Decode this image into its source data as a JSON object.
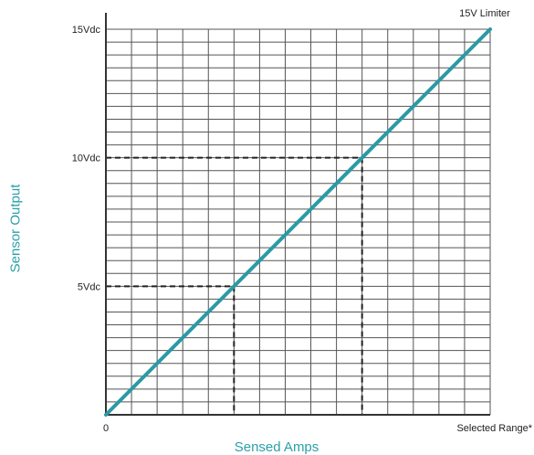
{
  "chart_data": {
    "type": "line",
    "xlabel": "Sensed Amps",
    "ylabel": "Sensor Output",
    "x_tick_labels": {
      "start": "0",
      "end": "Selected Range*"
    },
    "y_ticks": [
      {
        "value": 5,
        "label": "5Vdc"
      },
      {
        "value": 10,
        "label": "10Vdc"
      },
      {
        "value": 15,
        "label": "15Vdc"
      }
    ],
    "xlim": [
      0,
      15
    ],
    "ylim": [
      0,
      15
    ],
    "grid": true,
    "series": [
      {
        "x": [
          0,
          15
        ],
        "y": [
          0,
          15
        ],
        "color": "#2a9aa5"
      }
    ],
    "reference_lines": [
      {
        "x": 5,
        "y": 5
      },
      {
        "x": 10,
        "y": 10
      }
    ],
    "annotation": {
      "text": "15V Limiter",
      "x": 15,
      "y": 15
    }
  }
}
